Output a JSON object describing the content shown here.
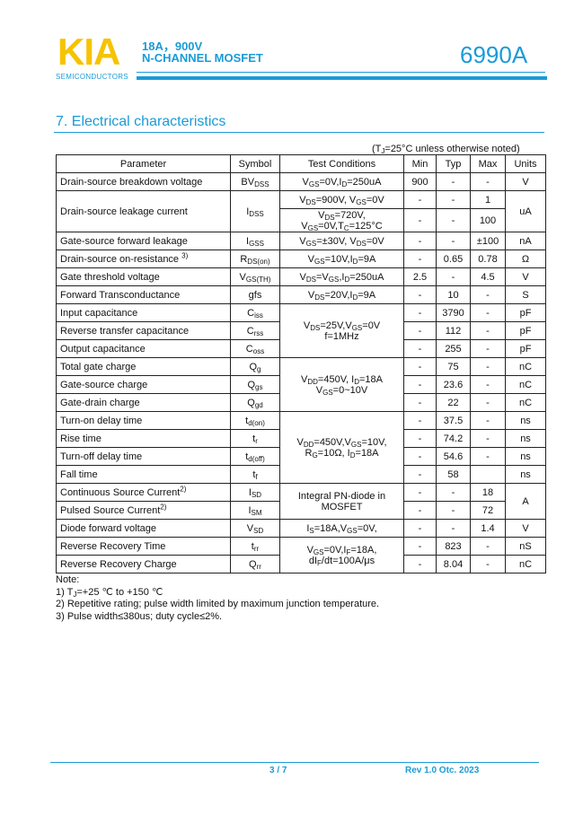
{
  "header": {
    "logo": "KIA",
    "logo_sub": "SEMICONDUCTORS",
    "rating": "18A，900V",
    "type": "N-CHANNEL MOSFET",
    "part_number": "6990A",
    "accent_color": "#1a9bd7",
    "logo_color": "#f6c300"
  },
  "section_title": "7.  Electrical characteristics",
  "condition_note": "(T_{J}=25°C unless otherwise noted)",
  "table": {
    "columns": [
      "Parameter",
      "Symbol",
      "Test Conditions",
      "Min",
      "Typ",
      "Max",
      "Units"
    ],
    "rows": [
      {
        "param": "Drain-source breakdown voltage",
        "symbol": "BV_{DSS}",
        "cond": "V_{GS}=0V,I_{D}=250uA",
        "min": "900",
        "typ": "-",
        "max": "-",
        "unit": "V"
      },
      {
        "param": "Drain-source leakage current",
        "symbol": "I_{DSS}",
        "cond": "V_{DS}=900V, V_{GS}=0V",
        "min": "-",
        "typ": "-",
        "max": "1",
        "unit": "uA"
      },
      {
        "cond": "V_{DS}=720V,\nV_{GS}=0V,T_{C}=125°C",
        "min": "-",
        "typ": "-",
        "max": "100"
      },
      {
        "param": "Gate-source forward leakage",
        "symbol": "I_{GSS}",
        "cond": "V_{GS}=±30V, V_{DS}=0V",
        "min": "-",
        "typ": "-",
        "max": "±100",
        "unit": "nA"
      },
      {
        "param": "Drain-source on-resistance ^{3)}",
        "symbol": "R_{DS(on)}",
        "cond": "V_{GS}=10V,I_{D}=9A",
        "min": "-",
        "typ": "0.65",
        "max": "0.78",
        "unit": "Ω"
      },
      {
        "param": "Gate threshold voltage",
        "symbol": "V_{GS(TH)}",
        "cond": "V_{DS}=V_{GS},I_{D}=250uA",
        "min": "2.5",
        "typ": "-",
        "max": "4.5",
        "unit": "V"
      },
      {
        "param": "Forward Transconductance",
        "symbol": "gfs",
        "cond": "V_{DS}=20V,I_{D}=9A",
        "min": "-",
        "typ": "10",
        "max": "-",
        "unit": "S"
      },
      {
        "param": "Input capacitance",
        "symbol": "C_{iss}",
        "cond": "V_{DS}=25V,V_{GS}=0V\nf=1MHz",
        "min": "-",
        "typ": "3790",
        "max": "-",
        "unit": "pF"
      },
      {
        "param": "Reverse transfer capacitance",
        "symbol": "C_{rss}",
        "min": "-",
        "typ": "112",
        "max": "-",
        "unit": "pF"
      },
      {
        "param": "Output capacitance",
        "symbol": "C_{oss}",
        "min": "-",
        "typ": "255",
        "max": "-",
        "unit": "pF"
      },
      {
        "param": "Total gate charge",
        "symbol": "Q_{g}",
        "cond": "V_{DD}=450V, I_{D}=18A\nV_{GS}=0~10V",
        "min": "-",
        "typ": "75",
        "max": "-",
        "unit": "nC"
      },
      {
        "param": "Gate-source charge",
        "symbol": "Q_{gs}",
        "min": "-",
        "typ": "23.6",
        "max": "-",
        "unit": "nC"
      },
      {
        "param": "Gate-drain charge",
        "symbol": "Q_{gd}",
        "min": "-",
        "typ": "22",
        "max": "-",
        "unit": "nC"
      },
      {
        "param": "Turn-on delay time",
        "symbol": "t_{d(on)}",
        "cond": "V_{DD}=450V,V_{GS}=10V,\nR_{G}=10Ω, I_{D}=18A",
        "min": "-",
        "typ": "37.5",
        "max": "-",
        "unit": "ns"
      },
      {
        "param": "Rise time",
        "symbol": "t_{r}",
        "min": "-",
        "typ": "74.2",
        "max": "-",
        "unit": "ns"
      },
      {
        "param": "Turn-off delay time",
        "symbol": "t_{d(off)}",
        "min": "-",
        "typ": "54.6",
        "max": "-",
        "unit": "ns"
      },
      {
        "param": "Fall time",
        "symbol": "t_{f}",
        "min": "-",
        "typ": "58",
        "max": "",
        "unit": "ns"
      },
      {
        "param": "Continuous Source Current^{2)}",
        "symbol": "I_{SD}",
        "cond": "Integral PN-diode in\nMOSFET",
        "min": "-",
        "typ": "-",
        "max": "18",
        "unit": "A"
      },
      {
        "param": "Pulsed Source Current^{2)}",
        "symbol": "I_{SM}",
        "min": "-",
        "typ": "-",
        "max": "72"
      },
      {
        "param": "Diode forward voltage",
        "symbol": "V_{SD}",
        "cond": "I_{S}=18A,V_{GS}=0V,",
        "min": "-",
        "typ": "-",
        "max": "1.4",
        "unit": "V"
      },
      {
        "param": "Reverse Recovery Time",
        "symbol": "t_{rr}",
        "cond": "V_{GS}=0V,I_{F}=18A,\ndI_{F}/dt=100A/μs",
        "min": "-",
        "typ": "823",
        "max": "-",
        "unit": "nS"
      },
      {
        "param": "Reverse Recovery Charge",
        "symbol": "Q_{rr}",
        "min": "-",
        "typ": "8.04",
        "max": "-",
        "unit": "nC"
      }
    ]
  },
  "notes": [
    "Note:",
    "1) T_{J}=+25 ℃ to +150 ℃",
    "2) Repetitive rating; pulse width limited by maximum junction temperature.",
    "3) Pulse width≤380us; duty cycle≤2%."
  ],
  "footer": {
    "page": "3 / 7",
    "revision": "Rev 1.0   Otc. 2023"
  }
}
